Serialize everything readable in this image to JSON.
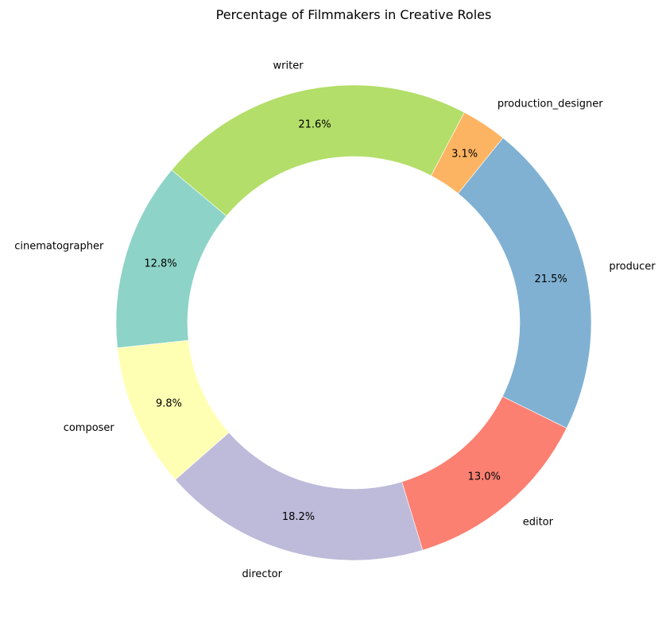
{
  "chart_data": {
    "type": "pie",
    "style": "donut",
    "title": "Percentage of Filmmakers in Creative Roles",
    "start_angle_deg": 140,
    "direction": "counterclockwise",
    "slices": [
      {
        "label": "cinematographer",
        "value": 12.8,
        "pct_label": "12.8%",
        "color": "#8dd3c7"
      },
      {
        "label": "composer",
        "value": 9.8,
        "pct_label": "9.8%",
        "color": "#ffffb3"
      },
      {
        "label": "director",
        "value": 18.2,
        "pct_label": "18.2%",
        "color": "#bebada"
      },
      {
        "label": "editor",
        "value": 13.0,
        "pct_label": "13.0%",
        "color": "#fb8072"
      },
      {
        "label": "producer",
        "value": 21.5,
        "pct_label": "21.5%",
        "color": "#80b1d3"
      },
      {
        "label": "production_designer",
        "value": 3.1,
        "pct_label": "3.1%",
        "color": "#fdb462"
      },
      {
        "label": "writer",
        "value": 21.6,
        "pct_label": "21.6%",
        "color": "#b3de69"
      }
    ]
  }
}
